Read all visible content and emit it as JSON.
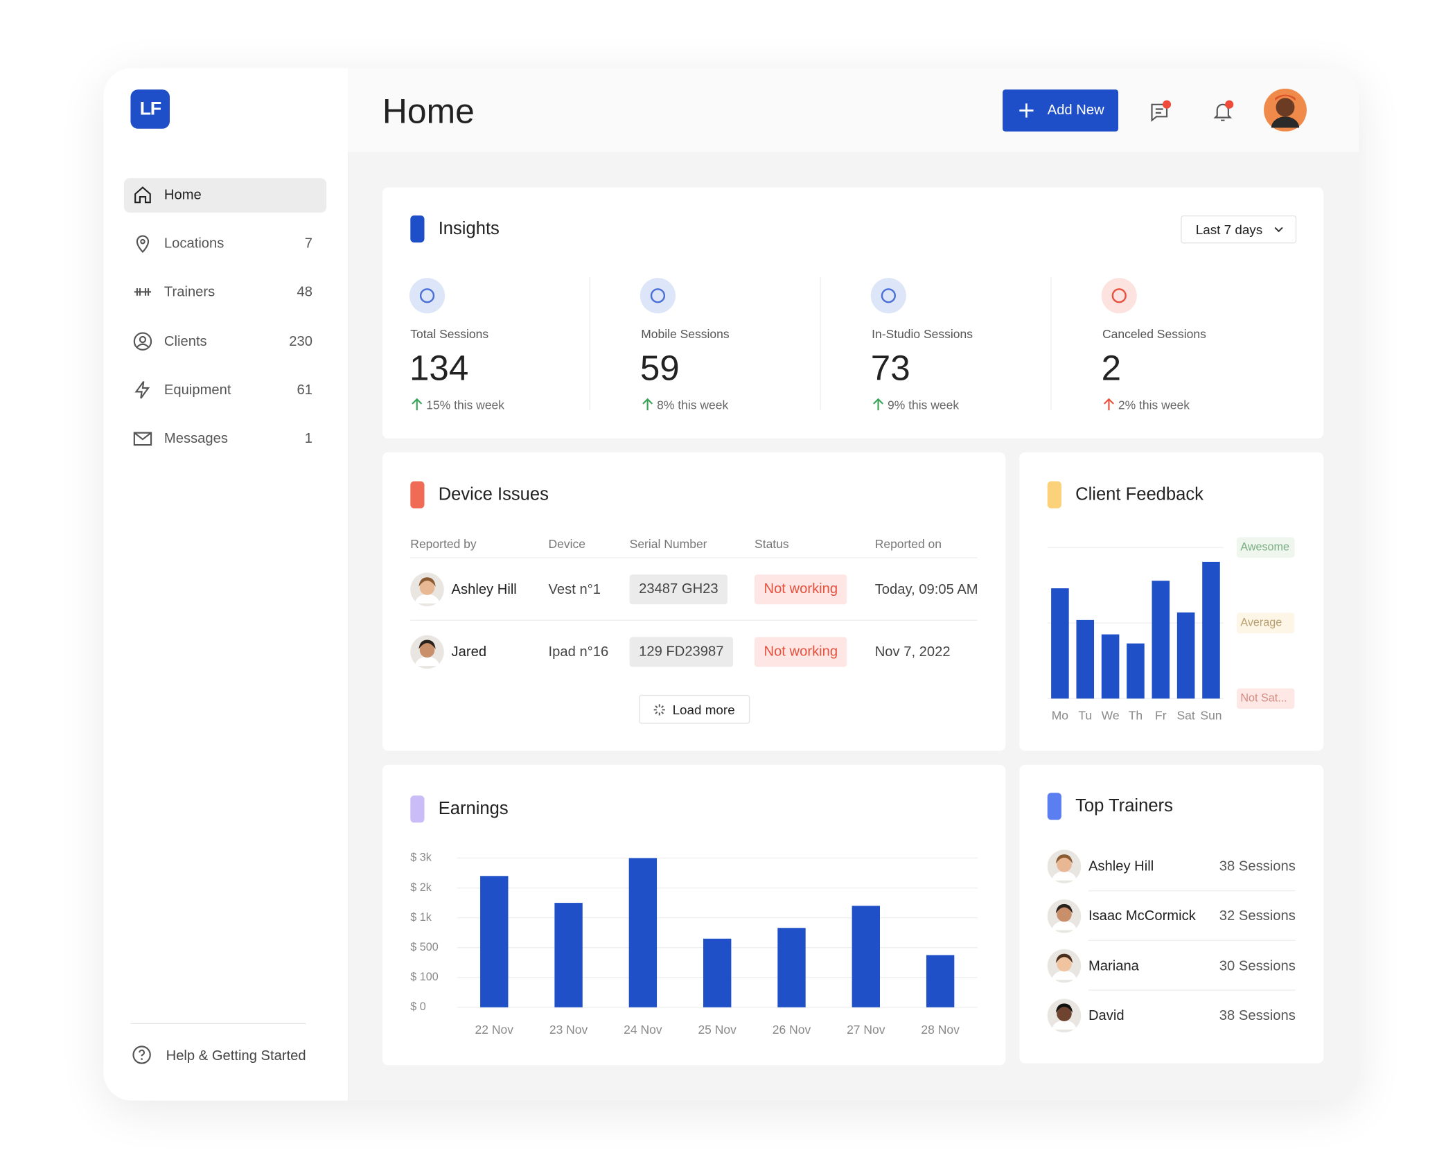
{
  "logo": "LF",
  "nav": [
    {
      "label": "Home"
    },
    {
      "label": "Locations",
      "count": 7
    },
    {
      "label": "Trainers",
      "count": 48
    },
    {
      "label": "Clients",
      "count": 230
    },
    {
      "label": "Equipment",
      "count": 61
    },
    {
      "label": "Messages",
      "count": 1
    }
  ],
  "help": "Help & Getting Started",
  "header": {
    "title": "Home",
    "add_button": "Add New"
  },
  "insights": {
    "title": "Insights",
    "range": "Last 7 days",
    "stats": [
      {
        "label": "Total Sessions",
        "value": 134,
        "change": "15% this week"
      },
      {
        "label": "Mobile Sessions",
        "value": 59,
        "change": "8% this week"
      },
      {
        "label": "In-Studio Sessions",
        "value": 73,
        "change": "9% this week"
      },
      {
        "label": "Canceled Sessions",
        "value": 2,
        "change": "2% this week"
      }
    ]
  },
  "device_issues": {
    "title": "Device Issues",
    "columns": [
      "Reported by",
      "Device",
      "Serial Number",
      "Status",
      "Reported on"
    ],
    "rows": [
      [
        "Ashley Hill",
        "Vest n°1",
        "23487 GH23",
        "Not working",
        "Today, 09:05 AM"
      ],
      [
        "Jared",
        "Ipad n°16",
        "129 FD23987",
        "Not working",
        "Nov 7, 2022"
      ]
    ],
    "load_more": "Load more"
  },
  "chart_data": [
    {
      "type": "bar",
      "title": "Client Feedback",
      "categories": [
        "Mo",
        "Tu",
        "We",
        "Th",
        "Fr",
        "Sat",
        "Sun"
      ],
      "values": [
        2.46,
        2.04,
        1.85,
        1.73,
        2.56,
        2.14,
        2.81
      ],
      "color": "#2050c8",
      "ylim": [
        1,
        3
      ],
      "yticks": [
        {
          "value": 3,
          "label": "Awesome"
        },
        {
          "value": 2,
          "label": "Average"
        },
        {
          "value": 1,
          "label": "Not Sat..."
        }
      ],
      "grid": true
    },
    {
      "type": "bar",
      "title": "Earnings",
      "categories": [
        "22 Nov",
        "23 Nov",
        "24 Nov",
        "25 Nov",
        "26 Nov",
        "27 Nov",
        "28 Nov"
      ],
      "values": [
        2400,
        1500,
        3000,
        650,
        830,
        1400,
        400
      ],
      "color": "#2050c8",
      "ylim": [
        0,
        3000
      ],
      "yticks": [
        {
          "value": 3000,
          "label": "$ 3k"
        },
        {
          "value": 2000,
          "label": "$ 2k"
        },
        {
          "value": 1000,
          "label": "$ 1k"
        },
        {
          "value": 500,
          "label": "$ 500"
        },
        {
          "value": 100,
          "label": "$ 100"
        },
        {
          "value": 0,
          "label": "$ 0"
        }
      ],
      "grid": true
    }
  ],
  "top_trainers": {
    "title": "Top Trainers",
    "rows": [
      {
        "name": "Ashley Hill",
        "sessions": "38 Sessions"
      },
      {
        "name": "Isaac McCormick",
        "sessions": "32 Sessions"
      },
      {
        "name": "Mariana",
        "sessions": "30 Sessions"
      },
      {
        "name": "David",
        "sessions": "38 Sessions"
      }
    ]
  }
}
